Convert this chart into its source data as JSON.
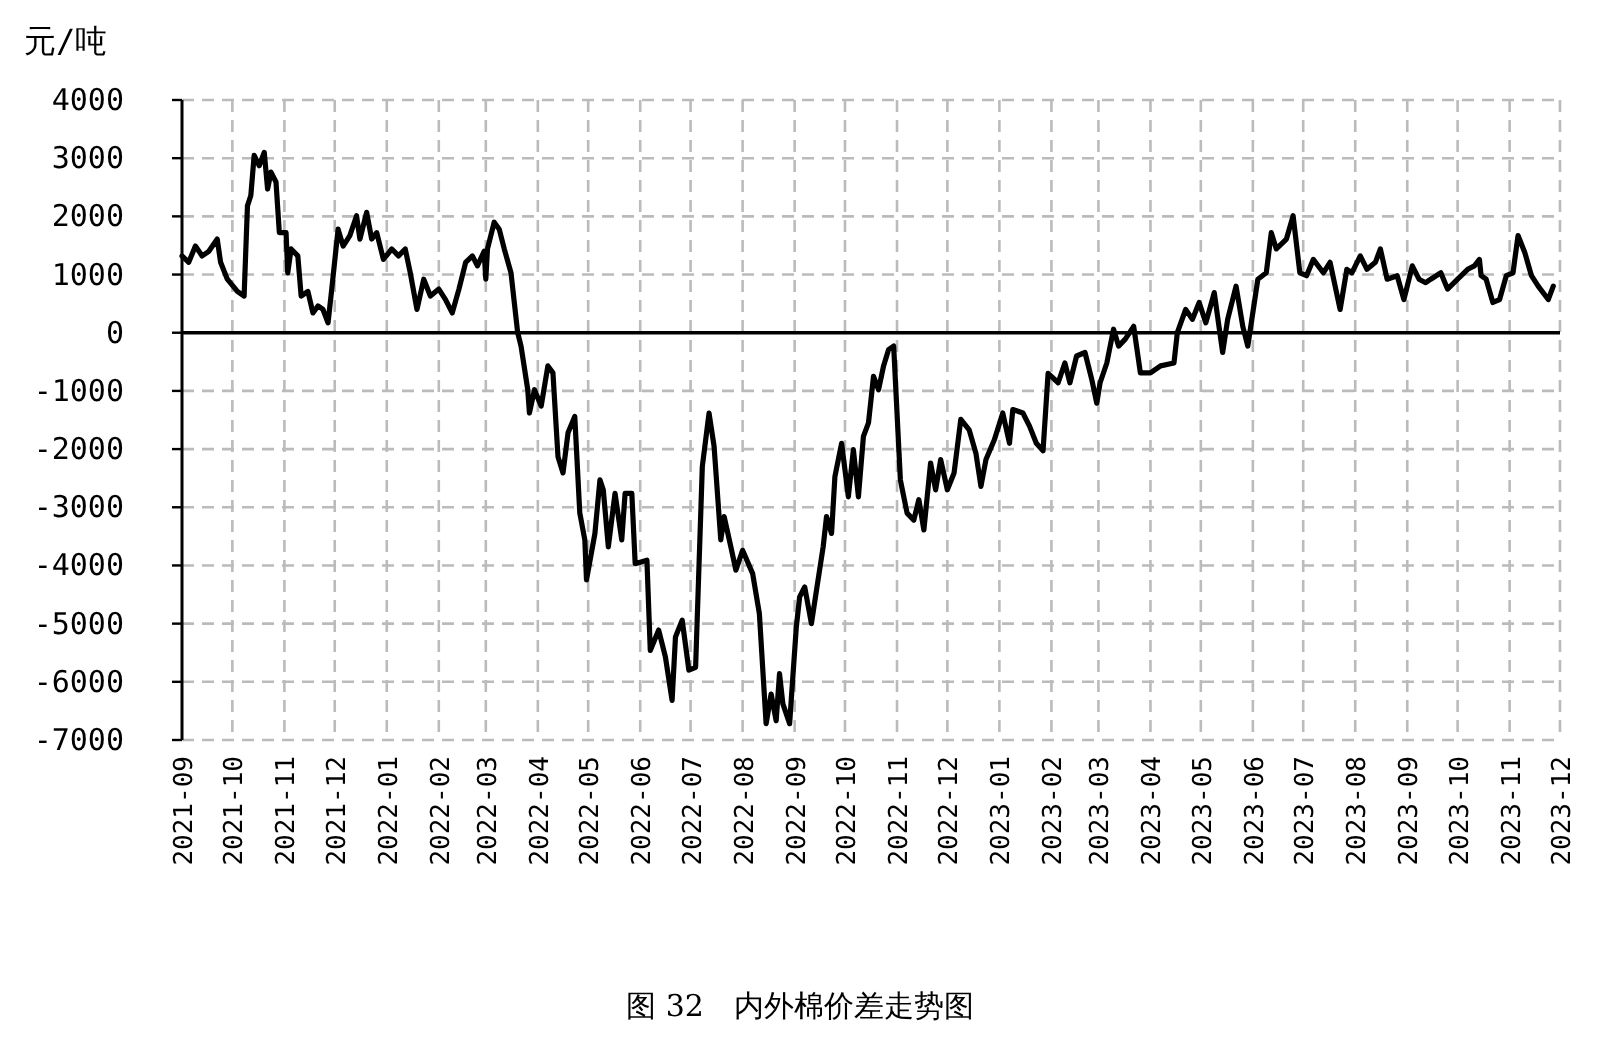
{
  "chart_data": {
    "type": "line",
    "ylabel": "元/吨",
    "annotations": [
      "图 32　内外棉价差走势图"
    ],
    "xlim": [
      "2021-09",
      "2023-12"
    ],
    "xticks": [
      "2021-09",
      "2021-10",
      "2021-11",
      "2021-12",
      "2022-01",
      "2022-02",
      "2022-03",
      "2022-04",
      "2022-05",
      "2022-06",
      "2022-07",
      "2022-08",
      "2022-09",
      "2022-10",
      "2022-11",
      "2022-12",
      "2023-01",
      "2023-02",
      "2023-03",
      "2023-04",
      "2023-05",
      "2023-06",
      "2023-07",
      "2023-08",
      "2023-09",
      "2023-10",
      "2023-11",
      "2023-12"
    ],
    "ylim": [
      -7000,
      4000
    ],
    "yticks": [
      -7000,
      -6000,
      -5000,
      -4000,
      -3000,
      -2000,
      -1000,
      0,
      1000,
      2000,
      3000,
      4000
    ],
    "grid": true,
    "ref_lines": [
      {
        "axis": "y",
        "value": 0,
        "color": "#000000"
      }
    ],
    "series": [
      {
        "color": "#000000",
        "x": [
          "2021-09-01",
          "2021-09-05",
          "2021-09-09",
          "2021-09-13",
          "2021-09-17",
          "2021-09-22",
          "2021-09-24",
          "2021-09-28",
          "2021-10-04",
          "2021-10-08",
          "2021-10-10",
          "2021-10-12",
          "2021-10-14",
          "2021-10-17",
          "2021-10-20",
          "2021-10-22",
          "2021-10-24",
          "2021-10-27",
          "2021-10-29",
          "2021-11-02",
          "2021-11-03",
          "2021-11-05",
          "2021-11-09",
          "2021-11-11",
          "2021-11-15",
          "2021-11-18",
          "2021-11-21",
          "2021-11-24",
          "2021-11-27",
          "2021-11-29",
          "2021-12-03",
          "2021-12-06",
          "2021-12-10",
          "2021-12-14",
          "2021-12-16",
          "2021-12-20",
          "2021-12-23",
          "2021-12-26",
          "2021-12-30",
          "2022-01-04",
          "2022-01-08",
          "2022-01-12",
          "2022-01-15",
          "2022-01-19",
          "2022-01-23",
          "2022-01-27",
          "2022-02-01",
          "2022-02-05",
          "2022-02-09",
          "2022-02-13",
          "2022-02-17",
          "2022-02-21",
          "2022-02-24",
          "2022-02-28",
          "2022-03-01",
          "2022-03-02",
          "2022-03-06",
          "2022-03-09",
          "2022-03-12",
          "2022-03-16",
          "2022-03-20",
          "2022-03-22",
          "2022-03-26",
          "2022-03-27",
          "2022-03-30",
          "2022-04-03",
          "2022-04-07",
          "2022-04-10",
          "2022-04-13",
          "2022-04-16",
          "2022-04-19",
          "2022-04-23",
          "2022-04-26",
          "2022-04-29",
          "2022-04-30",
          "2022-05-05",
          "2022-05-08",
          "2022-05-10",
          "2022-05-13",
          "2022-05-17",
          "2022-05-21",
          "2022-05-23",
          "2022-05-27",
          "2022-05-29",
          "2022-06-05",
          "2022-06-07",
          "2022-06-12",
          "2022-06-16",
          "2022-06-20",
          "2022-06-22",
          "2022-06-26",
          "2022-06-30",
          "2022-07-04",
          "2022-07-08",
          "2022-07-12",
          "2022-07-15",
          "2022-07-19",
          "2022-07-21",
          "2022-07-25",
          "2022-07-28",
          "2022-08-01",
          "2022-08-07",
          "2022-08-11",
          "2022-08-15",
          "2022-08-18",
          "2022-08-21",
          "2022-08-23",
          "2022-08-25",
          "2022-08-29",
          "2022-09-02",
          "2022-09-04",
          "2022-09-07",
          "2022-09-11",
          "2022-09-14",
          "2022-09-18",
          "2022-09-20",
          "2022-09-23",
          "2022-09-25",
          "2022-09-29",
          "2022-10-03",
          "2022-10-06",
          "2022-10-09",
          "2022-10-12",
          "2022-10-15",
          "2022-10-18",
          "2022-10-21",
          "2022-10-24",
          "2022-10-27",
          "2022-10-30",
          "2022-11-03",
          "2022-11-07",
          "2022-11-11",
          "2022-11-14",
          "2022-11-17",
          "2022-11-21",
          "2022-11-24",
          "2022-11-27",
          "2022-12-01",
          "2022-12-05",
          "2022-12-09",
          "2022-12-14",
          "2022-12-18",
          "2022-12-21",
          "2022-12-24",
          "2022-12-29",
          "2023-01-03",
          "2023-01-07",
          "2023-01-09",
          "2023-01-15",
          "2023-01-19",
          "2023-01-23",
          "2023-01-27",
          "2023-01-30",
          "2023-02-05",
          "2023-02-09",
          "2023-02-12",
          "2023-02-16",
          "2023-02-21",
          "2023-02-25",
          "2023-02-28",
          "2023-03-02",
          "2023-03-06",
          "2023-03-10",
          "2023-03-13",
          "2023-03-17",
          "2023-03-22",
          "2023-03-26",
          "2023-04-01",
          "2023-04-07",
          "2023-04-15",
          "2023-04-17",
          "2023-04-22",
          "2023-04-26",
          "2023-04-30",
          "2023-05-04",
          "2023-05-09",
          "2023-05-14",
          "2023-05-17",
          "2023-05-22",
          "2023-05-26",
          "2023-05-29",
          "2023-06-04",
          "2023-06-09",
          "2023-06-12",
          "2023-06-15",
          "2023-06-21",
          "2023-06-25",
          "2023-06-29",
          "2023-07-03",
          "2023-07-07",
          "2023-07-13",
          "2023-07-17",
          "2023-07-23",
          "2023-07-27",
          "2023-07-30",
          "2023-08-04",
          "2023-08-08",
          "2023-08-13",
          "2023-08-16",
          "2023-08-20",
          "2023-08-26",
          "2023-08-30",
          "2023-09-04",
          "2023-09-08",
          "2023-09-12",
          "2023-09-15",
          "2023-09-21",
          "2023-09-25",
          "2023-10-01",
          "2023-10-07",
          "2023-10-11",
          "2023-10-14",
          "2023-10-15",
          "2023-10-18",
          "2023-10-22",
          "2023-10-26",
          "2023-10-30",
          "2023-11-03",
          "2023-11-06",
          "2023-11-10",
          "2023-11-14",
          "2023-11-18",
          "2023-11-24",
          "2023-11-27"
        ],
        "values": [
          1320,
          1210,
          1490,
          1320,
          1400,
          1610,
          1210,
          920,
          710,
          630,
          2180,
          2360,
          3050,
          2870,
          3100,
          2470,
          2760,
          2590,
          1720,
          1720,
          1030,
          1440,
          1320,
          630,
          710,
          340,
          460,
          400,
          170,
          690,
          1780,
          1490,
          1670,
          2010,
          1610,
          2070,
          1610,
          1720,
          1260,
          1440,
          1320,
          1440,
          1030,
          400,
          920,
          630,
          750,
          570,
          340,
          750,
          1210,
          1320,
          1150,
          1400,
          920,
          1440,
          1900,
          1780,
          1440,
          1030,
          0,
          -230,
          -980,
          -1380,
          -980,
          -1260,
          -570,
          -690,
          -2130,
          -2410,
          -1720,
          -1440,
          -3100,
          -3560,
          -4250,
          -3450,
          -2530,
          -2700,
          -3680,
          -2760,
          -3560,
          -2760,
          -2760,
          -3970,
          -3910,
          -5460,
          -5110,
          -5570,
          -6320,
          -5230,
          -4940,
          -5800,
          -5750,
          -2300,
          -1380,
          -1950,
          -3560,
          -3160,
          -3680,
          -4080,
          -3740,
          -4140,
          -4830,
          -6720,
          -6210,
          -6670,
          -5860,
          -6380,
          -6720,
          -5060,
          -4540,
          -4370,
          -5000,
          -4430,
          -3680,
          -3160,
          -3450,
          -2470,
          -1900,
          -2820,
          -2010,
          -2820,
          -1780,
          -1550,
          -750,
          -980,
          -570,
          -290,
          -230,
          -2530,
          -3100,
          -3220,
          -2870,
          -3390,
          -2240,
          -2700,
          -2180,
          -2700,
          -2410,
          -1490,
          -1670,
          -2070,
          -2640,
          -2180,
          -1840,
          -1380,
          -1900,
          -1320,
          -1380,
          -1610,
          -1900,
          -2030,
          -700,
          -860,
          -520,
          -860,
          -400,
          -340,
          -800,
          -1210,
          -860,
          -520,
          60,
          -230,
          -110,
          110,
          -690,
          -690,
          -570,
          -520,
          0,
          400,
          230,
          520,
          170,
          690,
          -340,
          230,
          800,
          110,
          -230,
          920,
          1030,
          1720,
          1440,
          1610,
          2010,
          1030,
          980,
          1260,
          1030,
          1210,
          400,
          1090,
          1030,
          1320,
          1090,
          1210,
          1440,
          920,
          980,
          570,
          1150,
          920,
          860,
          920,
          1030,
          750,
          920,
          1090,
          1150,
          1260,
          980,
          920,
          520,
          570,
          980,
          1030,
          1670,
          1380,
          980,
          800,
          570,
          800
        ]
      }
    ]
  }
}
